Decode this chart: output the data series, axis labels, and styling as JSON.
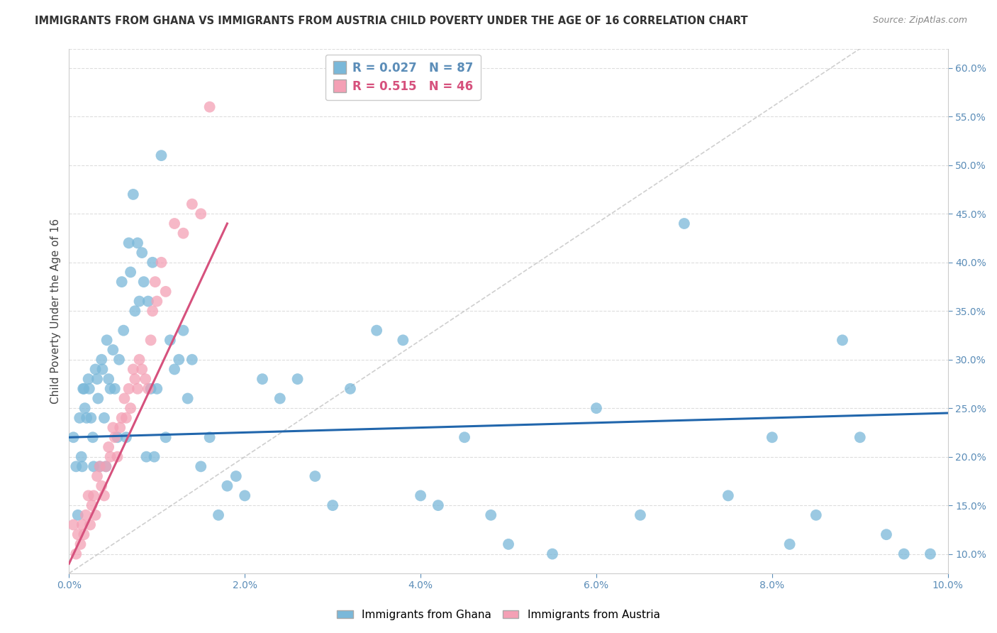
{
  "title": "IMMIGRANTS FROM GHANA VS IMMIGRANTS FROM AUSTRIA CHILD POVERTY UNDER THE AGE OF 16 CORRELATION CHART",
  "source": "Source: ZipAtlas.com",
  "ylabel": "Child Poverty Under the Age of 16",
  "xlim": [
    0.0,
    10.0
  ],
  "ylim": [
    8.0,
    62.0
  ],
  "xticks": [
    0.0,
    2.0,
    4.0,
    6.0,
    8.0,
    10.0
  ],
  "xticklabels": [
    "0.0%",
    "2.0%",
    "4.0%",
    "6.0%",
    "8.0%",
    "10.0%"
  ],
  "yticks": [
    10.0,
    15.0,
    20.0,
    25.0,
    30.0,
    35.0,
    40.0,
    45.0,
    50.0,
    55.0,
    60.0
  ],
  "yticklabels": [
    "10.0%",
    "15.0%",
    "20.0%",
    "25.0%",
    "30.0%",
    "35.0%",
    "40.0%",
    "45.0%",
    "50.0%",
    "55.0%",
    "60.0%"
  ],
  "ghana_color": "#7ab8d9",
  "austria_color": "#f4a0b5",
  "ghana_line_color": "#2166ac",
  "austria_line_color": "#d6517d",
  "ghana_R": 0.027,
  "ghana_N": 87,
  "austria_R": 0.515,
  "austria_N": 46,
  "legend_ghana": "Immigrants from Ghana",
  "legend_austria": "Immigrants from Austria",
  "ghana_x": [
    0.05,
    0.08,
    0.1,
    0.12,
    0.14,
    0.15,
    0.16,
    0.17,
    0.18,
    0.2,
    0.22,
    0.23,
    0.25,
    0.27,
    0.28,
    0.3,
    0.32,
    0.33,
    0.35,
    0.37,
    0.38,
    0.4,
    0.42,
    0.43,
    0.45,
    0.47,
    0.5,
    0.52,
    0.55,
    0.57,
    0.6,
    0.62,
    0.65,
    0.68,
    0.7,
    0.73,
    0.75,
    0.78,
    0.8,
    0.83,
    0.85,
    0.88,
    0.9,
    0.93,
    0.95,
    0.97,
    1.0,
    1.05,
    1.1,
    1.15,
    1.2,
    1.25,
    1.3,
    1.35,
    1.4,
    1.5,
    1.6,
    1.7,
    1.8,
    1.9,
    2.0,
    2.2,
    2.4,
    2.6,
    2.8,
    3.0,
    3.2,
    3.5,
    3.8,
    4.0,
    4.2,
    4.5,
    4.8,
    5.0,
    5.5,
    6.0,
    6.5,
    7.0,
    7.5,
    8.0,
    8.2,
    8.5,
    8.8,
    9.0,
    9.3,
    9.5,
    9.8
  ],
  "ghana_y": [
    22.0,
    19.0,
    14.0,
    24.0,
    20.0,
    19.0,
    27.0,
    27.0,
    25.0,
    24.0,
    28.0,
    27.0,
    24.0,
    22.0,
    19.0,
    29.0,
    28.0,
    26.0,
    19.0,
    30.0,
    29.0,
    24.0,
    19.0,
    32.0,
    28.0,
    27.0,
    31.0,
    27.0,
    22.0,
    30.0,
    38.0,
    33.0,
    22.0,
    42.0,
    39.0,
    47.0,
    35.0,
    42.0,
    36.0,
    41.0,
    38.0,
    20.0,
    36.0,
    27.0,
    40.0,
    20.0,
    27.0,
    51.0,
    22.0,
    32.0,
    29.0,
    30.0,
    33.0,
    26.0,
    30.0,
    19.0,
    22.0,
    14.0,
    17.0,
    18.0,
    16.0,
    28.0,
    26.0,
    28.0,
    18.0,
    15.0,
    27.0,
    33.0,
    32.0,
    16.0,
    15.0,
    22.0,
    14.0,
    11.0,
    10.0,
    25.0,
    14.0,
    44.0,
    16.0,
    22.0,
    11.0,
    14.0,
    32.0,
    22.0,
    12.0,
    10.0,
    10.0
  ],
  "austria_x": [
    0.05,
    0.08,
    0.1,
    0.13,
    0.15,
    0.17,
    0.19,
    0.22,
    0.24,
    0.26,
    0.28,
    0.3,
    0.32,
    0.35,
    0.37,
    0.4,
    0.42,
    0.45,
    0.47,
    0.5,
    0.52,
    0.55,
    0.58,
    0.6,
    0.63,
    0.65,
    0.68,
    0.7,
    0.73,
    0.75,
    0.78,
    0.8,
    0.83,
    0.87,
    0.9,
    0.93,
    0.95,
    0.98,
    1.0,
    1.05,
    1.1,
    1.2,
    1.3,
    1.4,
    1.5,
    1.6
  ],
  "austria_y": [
    13.0,
    10.0,
    12.0,
    11.0,
    13.0,
    12.0,
    14.0,
    16.0,
    13.0,
    15.0,
    16.0,
    14.0,
    18.0,
    19.0,
    17.0,
    16.0,
    19.0,
    21.0,
    20.0,
    23.0,
    22.0,
    20.0,
    23.0,
    24.0,
    26.0,
    24.0,
    27.0,
    25.0,
    29.0,
    28.0,
    27.0,
    30.0,
    29.0,
    28.0,
    27.0,
    32.0,
    35.0,
    38.0,
    36.0,
    40.0,
    37.0,
    44.0,
    43.0,
    46.0,
    45.0,
    56.0
  ],
  "ghana_line_x": [
    0.0,
    10.0
  ],
  "ghana_line_y": [
    22.0,
    24.5
  ],
  "austria_line_x": [
    0.0,
    1.8
  ],
  "austria_line_y": [
    9.0,
    44.0
  ]
}
